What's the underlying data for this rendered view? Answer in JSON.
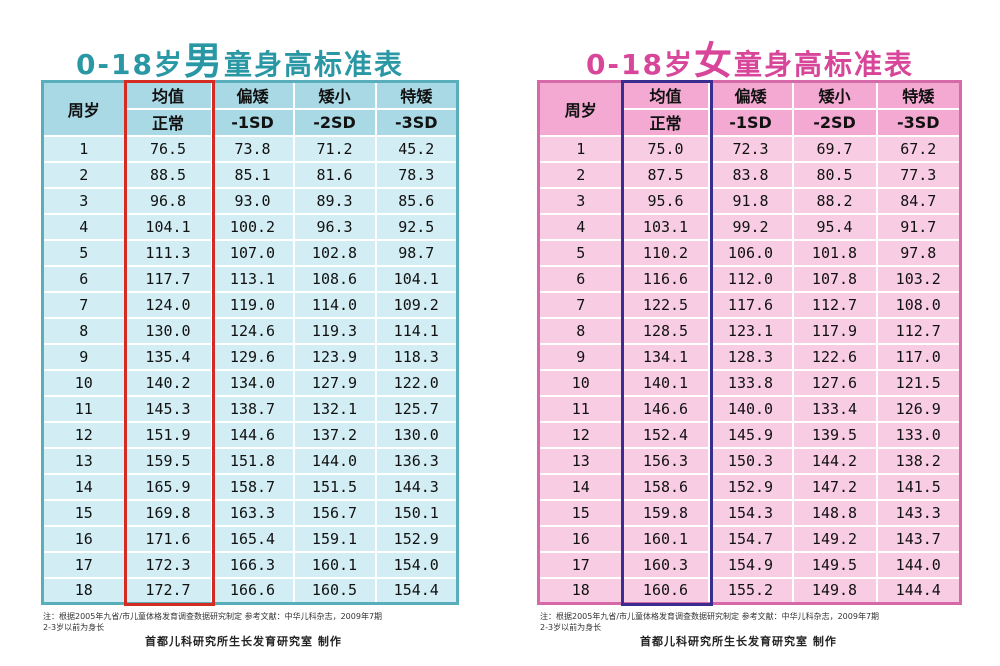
{
  "boys": {
    "title_pre": "0-18岁",
    "title_sex": "男",
    "title_post": "童身高标准表",
    "header_age": "周岁",
    "columns": [
      {
        "top": "均值",
        "bottom": "正常"
      },
      {
        "top": "偏矮",
        "bottom": "-1SD"
      },
      {
        "top": "矮小",
        "bottom": "-2SD"
      },
      {
        "top": "特矮",
        "bottom": "-3SD"
      }
    ],
    "rows": [
      [
        "1",
        "76.5",
        "73.8",
        "71.2",
        "45.2"
      ],
      [
        "2",
        "88.5",
        "85.1",
        "81.6",
        "78.3"
      ],
      [
        "3",
        "96.8",
        "93.0",
        "89.3",
        "85.6"
      ],
      [
        "4",
        "104.1",
        "100.2",
        "96.3",
        "92.5"
      ],
      [
        "5",
        "111.3",
        "107.0",
        "102.8",
        "98.7"
      ],
      [
        "6",
        "117.7",
        "113.1",
        "108.6",
        "104.1"
      ],
      [
        "7",
        "124.0",
        "119.0",
        "114.0",
        "109.2"
      ],
      [
        "8",
        "130.0",
        "124.6",
        "119.3",
        "114.1"
      ],
      [
        "9",
        "135.4",
        "129.6",
        "123.9",
        "118.3"
      ],
      [
        "10",
        "140.2",
        "134.0",
        "127.9",
        "122.0"
      ],
      [
        "11",
        "145.3",
        "138.7",
        "132.1",
        "125.7"
      ],
      [
        "12",
        "151.9",
        "144.6",
        "137.2",
        "130.0"
      ],
      [
        "13",
        "159.5",
        "151.8",
        "144.0",
        "136.3"
      ],
      [
        "14",
        "165.9",
        "158.7",
        "151.5",
        "144.3"
      ],
      [
        "15",
        "169.8",
        "163.3",
        "156.7",
        "150.1"
      ],
      [
        "16",
        "171.6",
        "165.4",
        "159.1",
        "152.9"
      ],
      [
        "17",
        "172.3",
        "166.3",
        "160.1",
        "154.0"
      ],
      [
        "18",
        "172.7",
        "166.6",
        "160.5",
        "154.4"
      ]
    ],
    "footnote_1": "注：根据2005年九省/市儿童体格发育调查数据研究制定    参考文献：中华儿科杂志，2009年7期",
    "footnote_2": "2-3岁以前为身长",
    "credit": "首都儿科研究所生长发育研究室 制作"
  },
  "girls": {
    "title_pre": "0-18岁",
    "title_sex": "女",
    "title_post": "童身高标准表",
    "header_age": "周岁",
    "columns": [
      {
        "top": "均值",
        "bottom": "正常"
      },
      {
        "top": "偏矮",
        "bottom": "-1SD"
      },
      {
        "top": "矮小",
        "bottom": "-2SD"
      },
      {
        "top": "特矮",
        "bottom": "-3SD"
      }
    ],
    "rows": [
      [
        "1",
        "75.0",
        "72.3",
        "69.7",
        "67.2"
      ],
      [
        "2",
        "87.5",
        "83.8",
        "80.5",
        "77.3"
      ],
      [
        "3",
        "95.6",
        "91.8",
        "88.2",
        "84.7"
      ],
      [
        "4",
        "103.1",
        "99.2",
        "95.4",
        "91.7"
      ],
      [
        "5",
        "110.2",
        "106.0",
        "101.8",
        "97.8"
      ],
      [
        "6",
        "116.6",
        "112.0",
        "107.8",
        "103.2"
      ],
      [
        "7",
        "122.5",
        "117.6",
        "112.7",
        "108.0"
      ],
      [
        "8",
        "128.5",
        "123.1",
        "117.9",
        "112.7"
      ],
      [
        "9",
        "134.1",
        "128.3",
        "122.6",
        "117.0"
      ],
      [
        "10",
        "140.1",
        "133.8",
        "127.6",
        "121.5"
      ],
      [
        "11",
        "146.6",
        "140.0",
        "133.4",
        "126.9"
      ],
      [
        "12",
        "152.4",
        "145.9",
        "139.5",
        "133.0"
      ],
      [
        "13",
        "156.3",
        "150.3",
        "144.2",
        "138.2"
      ],
      [
        "14",
        "158.6",
        "152.9",
        "147.2",
        "141.5"
      ],
      [
        "15",
        "159.8",
        "154.3",
        "148.8",
        "143.3"
      ],
      [
        "16",
        "160.1",
        "154.7",
        "149.2",
        "143.7"
      ],
      [
        "17",
        "160.3",
        "154.9",
        "149.5",
        "144.0"
      ],
      [
        "18",
        "160.6",
        "155.2",
        "149.8",
        "144.4"
      ]
    ],
    "footnote_1": "注：根据2005年九省/市儿童体格发育调查数据研究制定    参考文献：中华儿科杂志，2009年7期",
    "footnote_2": "2-3岁以前为身长",
    "credit": "首都儿科研究所生长发育研究室 制作"
  },
  "colors": {
    "boys_title": "#2a97a5",
    "boys_header": "#a9d9e5",
    "boys_cell": "#d2edf3",
    "boys_highlight": "#d42b22",
    "girls_title": "#d8469a",
    "girls_header": "#f3a9d1",
    "girls_cell": "#f8cde4",
    "girls_highlight": "#3b2d8f"
  }
}
